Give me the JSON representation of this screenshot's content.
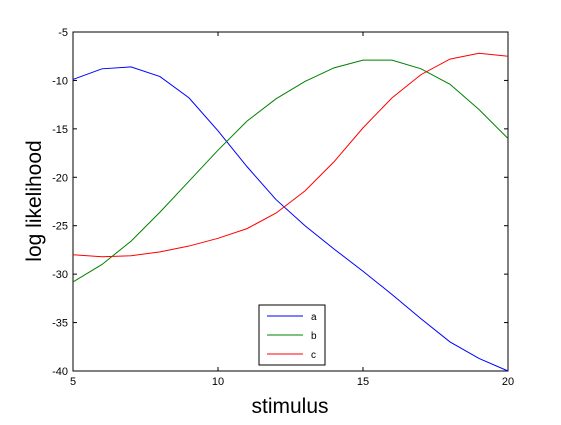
{
  "chart_data": {
    "type": "line",
    "title": "",
    "xlabel": "stimulus",
    "ylabel": "log likelihood",
    "xlim": [
      5,
      20
    ],
    "ylim": [
      -40,
      -5
    ],
    "xticks": [
      5,
      10,
      15,
      20
    ],
    "yticks": [
      -40,
      -35,
      -30,
      -25,
      -20,
      -15,
      -10,
      -5
    ],
    "grid": false,
    "legend_position": "bottom-center",
    "x": [
      5,
      6,
      7,
      8,
      9,
      10,
      11,
      12,
      13,
      14,
      15,
      16,
      17,
      18,
      19,
      20
    ],
    "series": [
      {
        "name": "a",
        "color": "#0000ff",
        "values": [
          -9.9,
          -8.8,
          -8.6,
          -9.6,
          -11.8,
          -15.2,
          -18.9,
          -22.3,
          -25.0,
          -27.4,
          -29.7,
          -32.1,
          -34.6,
          -37.0,
          -38.7,
          -40.0
        ]
      },
      {
        "name": "b",
        "color": "#008000",
        "values": [
          -30.8,
          -29.0,
          -26.6,
          -23.6,
          -20.4,
          -17.2,
          -14.2,
          -11.9,
          -10.1,
          -8.7,
          -7.9,
          -7.9,
          -8.8,
          -10.4,
          -13.0,
          -16.0
        ]
      },
      {
        "name": "c",
        "color": "#ff0000",
        "values": [
          -28.0,
          -28.2,
          -28.1,
          -27.7,
          -27.1,
          -26.3,
          -25.3,
          -23.7,
          -21.4,
          -18.4,
          -14.9,
          -11.8,
          -9.4,
          -7.8,
          -7.2,
          -7.5
        ]
      }
    ]
  }
}
